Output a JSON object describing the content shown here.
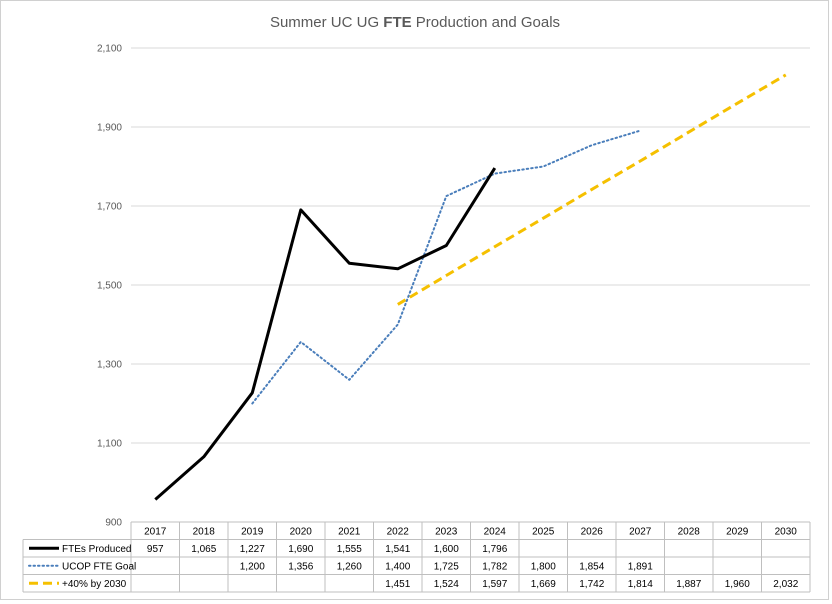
{
  "chart_data": {
    "type": "line",
    "title_parts": [
      {
        "text": "Summer UC UG ",
        "bold": false
      },
      {
        "text": "FTE",
        "bold": true
      },
      {
        "text": " Production and Goals",
        "bold": false
      }
    ],
    "categories": [
      "2017",
      "2018",
      "2019",
      "2020",
      "2021",
      "2022",
      "2023",
      "2024",
      "2025",
      "2026",
      "2027",
      "2028",
      "2029",
      "2030"
    ],
    "ylim": [
      900,
      2100
    ],
    "yticks": [
      "900",
      "1,100",
      "1,300",
      "1,500",
      "1,700",
      "1,900",
      "2,100"
    ],
    "ytick_values": [
      900,
      1100,
      1300,
      1500,
      1700,
      1900,
      2100
    ],
    "grid": true,
    "legend": "data-table",
    "series": [
      {
        "name": "FTEs Produced",
        "color": "#000000",
        "style": "solid",
        "values": [
          957,
          1065,
          1227,
          1690,
          1555,
          1541,
          1600,
          1796,
          null,
          null,
          null,
          null,
          null,
          null
        ],
        "labels": [
          "957",
          "1,065",
          "1,227",
          "1,690",
          "1,555",
          "1,541",
          "1,600",
          "1,796",
          "",
          "",
          "",
          "",
          "",
          ""
        ]
      },
      {
        "name": "UCOP FTE Goal",
        "color": "#4a7ebb",
        "style": "dotted",
        "values": [
          null,
          null,
          1200,
          1356,
          1260,
          1400,
          1725,
          1782,
          1800,
          1854,
          1891,
          null,
          null,
          null
        ],
        "labels": [
          "",
          "",
          "1,200",
          "1,356",
          "1,260",
          "1,400",
          "1,725",
          "1,782",
          "1,800",
          "1,854",
          "1,891",
          "",
          "",
          ""
        ]
      },
      {
        "name": "+40% by 2030",
        "color": "#f5c000",
        "style": "dashed",
        "values": [
          null,
          null,
          null,
          null,
          null,
          1451,
          1524,
          1597,
          1669,
          1742,
          1814,
          1887,
          1960,
          2032
        ],
        "labels": [
          "",
          "",
          "",
          "",
          "",
          "1,451",
          "1,524",
          "1,597",
          "1,669",
          "1,742",
          "1,814",
          "1,887",
          "1,960",
          "2,032"
        ]
      }
    ]
  }
}
